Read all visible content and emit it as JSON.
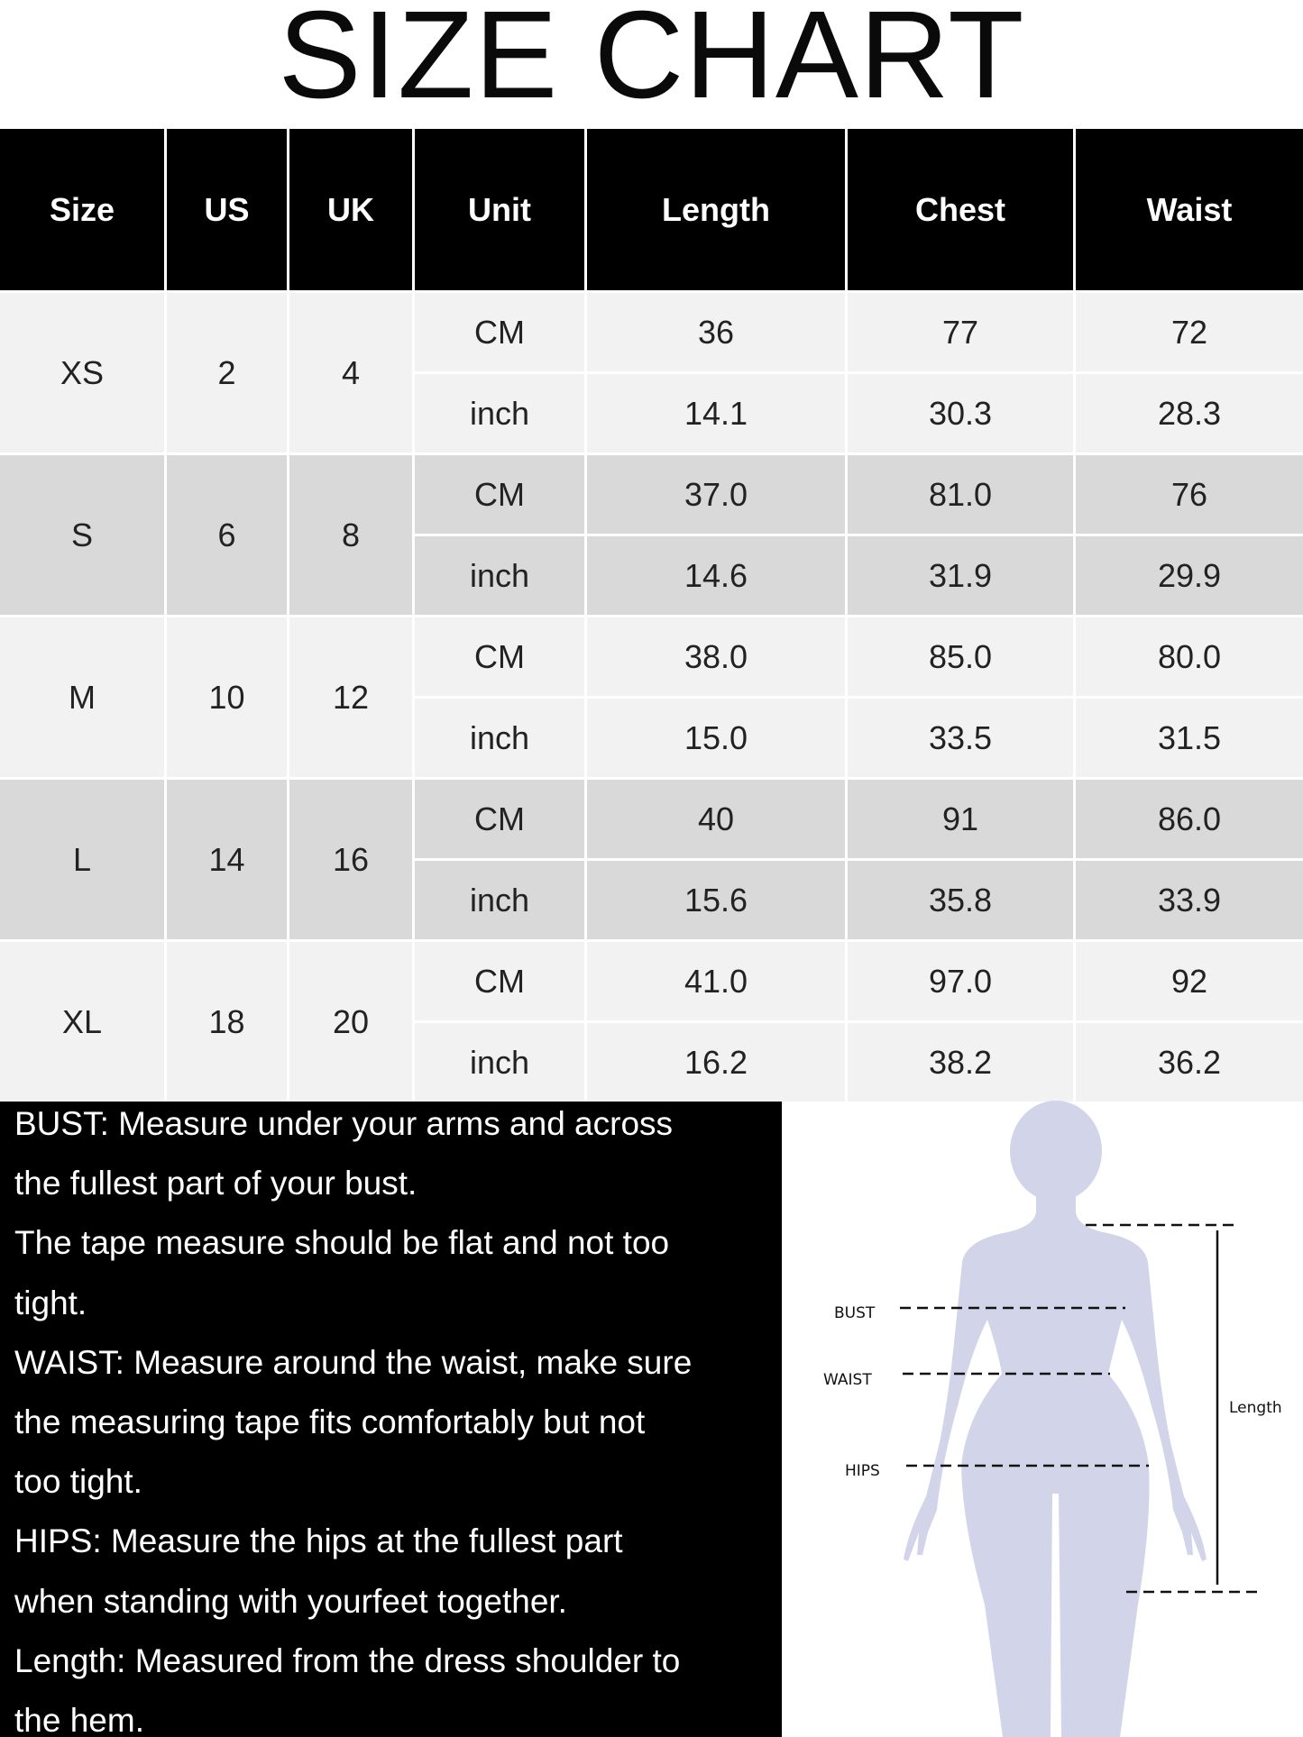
{
  "title": "SIZE CHART",
  "table": {
    "headers": [
      "Size",
      "US",
      "UK",
      "Unit",
      "Length",
      "Chest",
      "Waist"
    ],
    "rows": [
      {
        "size": "XS",
        "us": "2",
        "uk": "4",
        "cm": {
          "unit": "CM",
          "length": "36",
          "chest": "77",
          "waist": "72"
        },
        "inch": {
          "unit": "inch",
          "length": "14.1",
          "chest": "30.3",
          "waist": "28.3"
        }
      },
      {
        "size": "S",
        "us": "6",
        "uk": "8",
        "cm": {
          "unit": "CM",
          "length": "37.0",
          "chest": "81.0",
          "waist": "76"
        },
        "inch": {
          "unit": "inch",
          "length": "14.6",
          "chest": "31.9",
          "waist": "29.9"
        }
      },
      {
        "size": "M",
        "us": "10",
        "uk": "12",
        "cm": {
          "unit": "CM",
          "length": "38.0",
          "chest": "85.0",
          "waist": "80.0"
        },
        "inch": {
          "unit": "inch",
          "length": "15.0",
          "chest": "33.5",
          "waist": "31.5"
        }
      },
      {
        "size": "L",
        "us": "14",
        "uk": "16",
        "cm": {
          "unit": "CM",
          "length": "40",
          "chest": "91",
          "waist": "86.0"
        },
        "inch": {
          "unit": "inch",
          "length": "15.6",
          "chest": "35.8",
          "waist": "33.9"
        }
      },
      {
        "size": "XL",
        "us": "18",
        "uk": "20",
        "cm": {
          "unit": "CM",
          "length": "41.0",
          "chest": "97.0",
          "waist": "92"
        },
        "inch": {
          "unit": "inch",
          "length": "16.2",
          "chest": "38.2",
          "waist": "36.2"
        }
      }
    ],
    "colors": {
      "header": "#000000",
      "row_light": "#f2f2f2",
      "row_dark": "#d9d9d9"
    }
  },
  "notes": {
    "lines": [
      "BUST: Measure under your arms and across",
      "the fullest part of your bust.",
      "The tape measure should be flat and not too",
      "tight.",
      "WAIST: Measure around the waist, make sure",
      "the measuring tape fits comfortably but not",
      "too tight.",
      "HIPS: Measure the hips at the fullest part",
      "when standing with yourfeet together.",
      "Length: Measured from the dress shoulder to",
      "the hem."
    ]
  },
  "figure": {
    "labels": {
      "bust": "BUST",
      "waist": "WAIST",
      "hips": "HIPS",
      "length": "Length"
    },
    "silhouette_color": "#d2d5e9"
  }
}
